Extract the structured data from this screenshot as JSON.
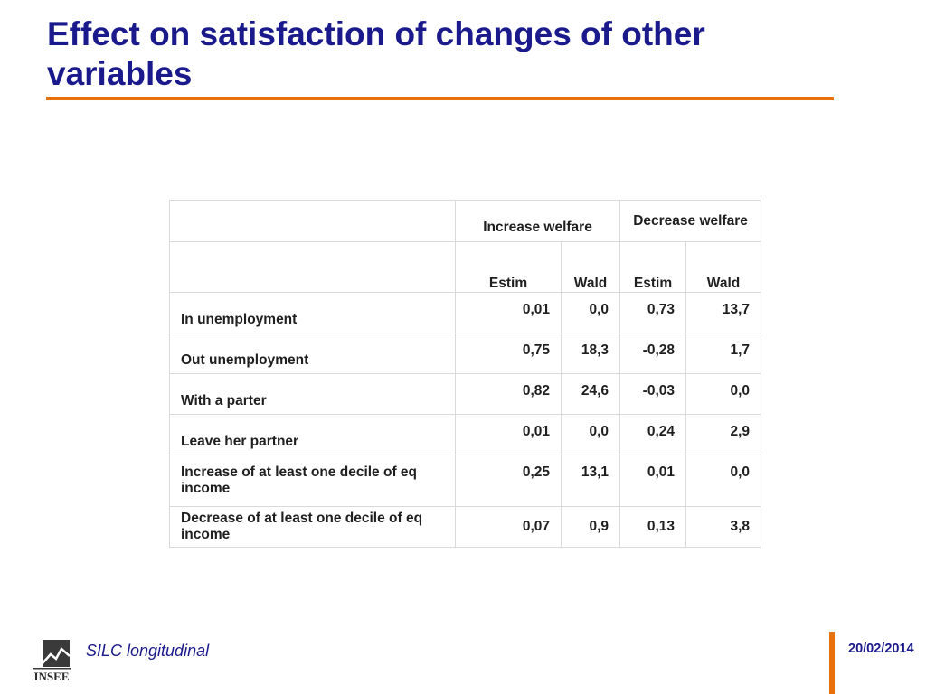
{
  "slide": {
    "title": "Effect on satisfaction of changes of other variables",
    "accent_color": "#e8700d",
    "title_color": "#1a1a8c"
  },
  "table": {
    "group_headers": [
      "Increase welfare",
      "Decrease welfare"
    ],
    "sub_headers": [
      "Estim",
      "Wald",
      "Estim",
      "Wald"
    ],
    "rows": [
      {
        "label": "In unemployment",
        "values": [
          "0,01",
          "0,0",
          "0,73",
          "13,7"
        ]
      },
      {
        "label": "Out unemployment",
        "values": [
          "0,75",
          "18,3",
          "-0,28",
          "1,7"
        ]
      },
      {
        "label": "With a parter",
        "values": [
          "0,82",
          "24,6",
          "-0,03",
          "0,0"
        ]
      },
      {
        "label": "Leave her partner",
        "values": [
          "0,01",
          "0,0",
          "0,24",
          "2,9"
        ]
      },
      {
        "label": "Increase of at least one decile of eq income",
        "values": [
          "0,25",
          "13,1",
          "0,01",
          "0,0"
        ]
      },
      {
        "label": "Decrease of at least one decile of eq income",
        "values": [
          "0,07",
          "0,9",
          "0,13",
          "3,8"
        ]
      }
    ]
  },
  "footer": {
    "logo_text": "INSEE",
    "title": "SILC longitudinal",
    "date": "20/02/2014"
  }
}
